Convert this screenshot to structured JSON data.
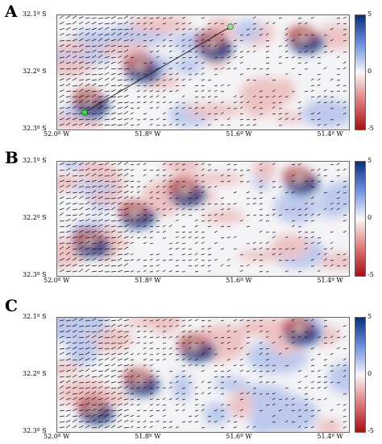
{
  "colors": {
    "negative": "#a50f15",
    "neutral": "#f8f8f8",
    "positive": "#08307a",
    "vector": "#111111"
  },
  "chart_data": [
    {
      "type": "heatmap",
      "panel_label": "A",
      "x_ticks": [
        "52.0º W",
        "51.8º W",
        "51.6º W",
        "51.4º W"
      ],
      "x_values": [
        -52.0,
        -51.8,
        -51.6,
        -51.4
      ],
      "y_ticks": [
        "32.1º S",
        "32.2º S",
        "32.3º S"
      ],
      "y_values": [
        -32.1,
        -32.2,
        -32.3
      ],
      "colorbar": {
        "min": -5,
        "max": 5,
        "ticks": [
          "5",
          "0",
          "-5"
        ]
      },
      "vector_field": true,
      "transect_line": true,
      "features": [
        {
          "kind": "dipole",
          "lon": -51.93,
          "lat": -32.25
        },
        {
          "kind": "dipole",
          "lon": -51.82,
          "lat": -32.19
        },
        {
          "kind": "dipole",
          "lon": -51.66,
          "lat": -32.15
        },
        {
          "kind": "dipole",
          "lon": -51.46,
          "lat": -32.14
        }
      ]
    },
    {
      "type": "heatmap",
      "panel_label": "B",
      "x_ticks": [
        "52.0º W",
        "51.8º W",
        "51.6º W",
        "51.4º W"
      ],
      "x_values": [
        -52.0,
        -51.8,
        -51.6,
        -51.4
      ],
      "y_ticks": [
        "32.1º S",
        "32.2º S",
        "32.3º S"
      ],
      "y_values": [
        -32.1,
        -32.2,
        -32.3
      ],
      "colorbar": {
        "min": -5,
        "max": 5,
        "ticks": [
          "5",
          "0",
          "-5"
        ]
      },
      "vector_field": true,
      "features": [
        {
          "kind": "dipole",
          "lon": -51.93,
          "lat": -32.24
        },
        {
          "kind": "dipole",
          "lon": -51.83,
          "lat": -32.19
        },
        {
          "kind": "dipole",
          "lon": -51.72,
          "lat": -32.15
        },
        {
          "kind": "dipole",
          "lon": -51.47,
          "lat": -32.13
        }
      ]
    },
    {
      "type": "heatmap",
      "panel_label": "C",
      "x_ticks": [
        "52.0º W",
        "51.8º W",
        "51.6º W",
        "51.4º W"
      ],
      "x_values": [
        -52.0,
        -51.8,
        -51.6,
        -51.4
      ],
      "y_ticks": [
        "32.1º S",
        "32.2º S",
        "32.3º S"
      ],
      "y_values": [
        -32.1,
        -32.2,
        -32.3
      ],
      "colorbar": {
        "min": -5,
        "max": 5,
        "ticks": [
          "5",
          "0",
          "-5"
        ]
      },
      "vector_field": true,
      "features": [
        {
          "kind": "dipole",
          "lon": -51.92,
          "lat": -32.26
        },
        {
          "kind": "dipole",
          "lon": -51.82,
          "lat": -32.21
        },
        {
          "kind": "dipole",
          "lon": -51.7,
          "lat": -32.15
        },
        {
          "kind": "dipole",
          "lon": -51.47,
          "lat": -32.12
        }
      ]
    }
  ]
}
